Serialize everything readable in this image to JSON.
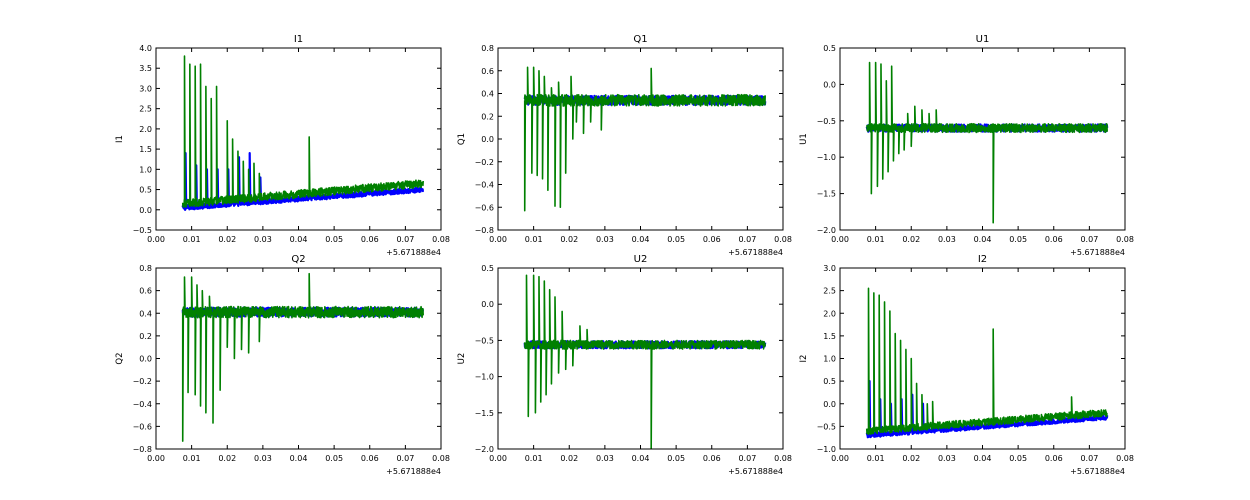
{
  "colors": {
    "series_a": "#0000ff",
    "series_b": "#008000",
    "axes": "#000000",
    "background": "#ffffff"
  },
  "chart_data": [
    {
      "type": "line",
      "title": "I1",
      "ylabel": "I1",
      "xlim": [
        0.0,
        0.08
      ],
      "ylim": [
        -0.5,
        4.0
      ],
      "xticks": [
        0.0,
        0.01,
        0.02,
        0.03,
        0.04,
        0.05,
        0.06,
        0.07,
        0.08
      ],
      "xtick_labels": [
        "0.00",
        "0.01",
        "0.02",
        "0.03",
        "0.04",
        "0.05",
        "0.06",
        "0.07",
        "0.08"
      ],
      "yticks": [
        -0.5,
        0.0,
        0.5,
        1.0,
        1.5,
        2.0,
        2.5,
        3.0,
        3.5,
        4.0
      ],
      "ytick_labels": [
        "−0.5",
        "0.0",
        "0.5",
        "1.0",
        "1.5",
        "2.0",
        "2.5",
        "3.0",
        "3.5",
        "4.0"
      ],
      "x_offset_label": "+5.671888e4",
      "series": [
        {
          "color": "#0000ff",
          "x_range": [
            0.0075,
            0.075
          ],
          "level_start": 0.05,
          "level_end": 0.5,
          "noise": 0.06,
          "spikes": [
            [
              0.0083,
              1.4
            ],
            [
              0.0113,
              1.1
            ],
            [
              0.0143,
              1.0
            ],
            [
              0.0173,
              1.0
            ],
            [
              0.0203,
              1.0
            ],
            [
              0.0233,
              1.3
            ],
            [
              0.0263,
              1.4
            ],
            [
              0.0293,
              0.8
            ]
          ]
        },
        {
          "color": "#008000",
          "x_range": [
            0.0075,
            0.075
          ],
          "level_start": 0.15,
          "level_end": 0.65,
          "noise": 0.1,
          "spikes": [
            [
              0.008,
              3.8
            ],
            [
              0.0095,
              3.6
            ],
            [
              0.011,
              3.55
            ],
            [
              0.0125,
              3.6
            ],
            [
              0.014,
              3.05
            ],
            [
              0.0155,
              2.75
            ],
            [
              0.017,
              3.05
            ],
            [
              0.02,
              2.2
            ],
            [
              0.0215,
              1.75
            ],
            [
              0.023,
              1.45
            ],
            [
              0.0245,
              1.2
            ],
            [
              0.026,
              1.0
            ],
            [
              0.0275,
              1.15
            ],
            [
              0.029,
              0.9
            ],
            [
              0.043,
              1.8
            ]
          ]
        }
      ]
    },
    {
      "type": "line",
      "title": "Q1",
      "ylabel": "Q1",
      "xlim": [
        0.0,
        0.08
      ],
      "ylim": [
        -0.8,
        0.8
      ],
      "xticks": [
        0.0,
        0.01,
        0.02,
        0.03,
        0.04,
        0.05,
        0.06,
        0.07,
        0.08
      ],
      "xtick_labels": [
        "0.00",
        "0.01",
        "0.02",
        "0.03",
        "0.04",
        "0.05",
        "0.06",
        "0.07",
        "0.08"
      ],
      "yticks": [
        -0.8,
        -0.6,
        -0.4,
        -0.2,
        0.0,
        0.2,
        0.4,
        0.6,
        0.8
      ],
      "ytick_labels": [
        "−0.8",
        "−0.6",
        "−0.4",
        "−0.2",
        "0.0",
        "0.2",
        "0.4",
        "0.6",
        "0.8"
      ],
      "x_offset_label": "+5.671888e4",
      "series": [
        {
          "color": "#0000ff",
          "x_range": [
            0.0075,
            0.075
          ],
          "level_start": 0.34,
          "level_end": 0.34,
          "noise": 0.04,
          "spikes": []
        },
        {
          "color": "#008000",
          "x_range": [
            0.0075,
            0.075
          ],
          "level_start": 0.34,
          "level_end": 0.34,
          "noise": 0.05,
          "spikes": [
            [
              0.0075,
              -0.63
            ],
            [
              0.0083,
              0.63
            ],
            [
              0.0095,
              -0.3
            ],
            [
              0.01,
              0.63
            ],
            [
              0.011,
              -0.32
            ],
            [
              0.0115,
              0.6
            ],
            [
              0.0125,
              -0.35
            ],
            [
              0.013,
              0.55
            ],
            [
              0.014,
              -0.45
            ],
            [
              0.015,
              0.45
            ],
            [
              0.016,
              -0.59
            ],
            [
              0.017,
              0.5
            ],
            [
              0.0175,
              -0.6
            ],
            [
              0.019,
              -0.3
            ],
            [
              0.0205,
              0.55
            ],
            [
              0.021,
              0.0
            ],
            [
              0.022,
              0.15
            ],
            [
              0.024,
              0.05
            ],
            [
              0.026,
              0.15
            ],
            [
              0.029,
              0.08
            ],
            [
              0.043,
              0.62
            ]
          ]
        }
      ]
    },
    {
      "type": "line",
      "title": "U1",
      "ylabel": "U1",
      "xlim": [
        0.0,
        0.08
      ],
      "ylim": [
        -2.0,
        0.5
      ],
      "xticks": [
        0.0,
        0.01,
        0.02,
        0.03,
        0.04,
        0.05,
        0.06,
        0.07,
        0.08
      ],
      "xtick_labels": [
        "0.00",
        "0.01",
        "0.02",
        "0.03",
        "0.04",
        "0.05",
        "0.06",
        "0.07",
        "0.08"
      ],
      "yticks": [
        -2.0,
        -1.5,
        -1.0,
        -0.5,
        0.0,
        0.5
      ],
      "ytick_labels": [
        "−2.0",
        "−1.5",
        "−1.0",
        "−0.5",
        "0.0",
        "0.5"
      ],
      "x_offset_label": "+5.671888e4",
      "series": [
        {
          "color": "#0000ff",
          "x_range": [
            0.0075,
            0.075
          ],
          "level_start": -0.6,
          "level_end": -0.6,
          "noise": 0.05,
          "spikes": []
        },
        {
          "color": "#008000",
          "x_range": [
            0.0075,
            0.075
          ],
          "level_start": -0.6,
          "level_end": -0.6,
          "noise": 0.06,
          "spikes": [
            [
              0.0083,
              0.3
            ],
            [
              0.0088,
              -1.5
            ],
            [
              0.01,
              0.3
            ],
            [
              0.0105,
              -1.4
            ],
            [
              0.0115,
              0.28
            ],
            [
              0.012,
              -1.3
            ],
            [
              0.013,
              0.05
            ],
            [
              0.0135,
              -1.2
            ],
            [
              0.0145,
              0.25
            ],
            [
              0.015,
              -1.05
            ],
            [
              0.0165,
              -0.95
            ],
            [
              0.018,
              -0.9
            ],
            [
              0.019,
              -0.4
            ],
            [
              0.02,
              -0.85
            ],
            [
              0.021,
              -0.3
            ],
            [
              0.023,
              -0.35
            ],
            [
              0.025,
              -0.4
            ],
            [
              0.027,
              -0.35
            ],
            [
              0.043,
              -1.9
            ]
          ]
        }
      ]
    },
    {
      "type": "line",
      "title": "Q2",
      "ylabel": "Q2",
      "xlim": [
        0.0,
        0.08
      ],
      "ylim": [
        -0.8,
        0.8
      ],
      "xticks": [
        0.0,
        0.01,
        0.02,
        0.03,
        0.04,
        0.05,
        0.06,
        0.07,
        0.08
      ],
      "xtick_labels": [
        "0.00",
        "0.01",
        "0.02",
        "0.03",
        "0.04",
        "0.05",
        "0.06",
        "0.07",
        "0.08"
      ],
      "yticks": [
        -0.8,
        -0.6,
        -0.4,
        -0.2,
        0.0,
        0.2,
        0.4,
        0.6,
        0.8
      ],
      "ytick_labels": [
        "−0.8",
        "−0.6",
        "−0.4",
        "−0.2",
        "0.0",
        "0.2",
        "0.4",
        "0.6",
        "0.8"
      ],
      "x_offset_label": "+5.671888e4",
      "series": [
        {
          "color": "#0000ff",
          "x_range": [
            0.0075,
            0.075
          ],
          "level_start": 0.41,
          "level_end": 0.41,
          "noise": 0.04,
          "spikes": []
        },
        {
          "color": "#008000",
          "x_range": [
            0.0075,
            0.075
          ],
          "level_start": 0.41,
          "level_end": 0.41,
          "noise": 0.05,
          "spikes": [
            [
              0.0075,
              -0.73
            ],
            [
              0.008,
              0.72
            ],
            [
              0.009,
              -0.3
            ],
            [
              0.01,
              0.72
            ],
            [
              0.011,
              -0.32
            ],
            [
              0.0115,
              0.65
            ],
            [
              0.0125,
              -0.42
            ],
            [
              0.013,
              0.6
            ],
            [
              0.014,
              -0.48
            ],
            [
              0.015,
              0.55
            ],
            [
              0.016,
              -0.57
            ],
            [
              0.017,
              0.45
            ],
            [
              0.018,
              -0.28
            ],
            [
              0.02,
              0.1
            ],
            [
              0.022,
              0.0
            ],
            [
              0.024,
              0.08
            ],
            [
              0.026,
              0.05
            ],
            [
              0.029,
              0.15
            ],
            [
              0.043,
              0.75
            ]
          ]
        }
      ]
    },
    {
      "type": "line",
      "title": "U2",
      "ylabel": "U2",
      "xlim": [
        0.0,
        0.08
      ],
      "ylim": [
        -2.0,
        0.5
      ],
      "xticks": [
        0.0,
        0.01,
        0.02,
        0.03,
        0.04,
        0.05,
        0.06,
        0.07,
        0.08
      ],
      "xtick_labels": [
        "0.00",
        "0.01",
        "0.02",
        "0.03",
        "0.04",
        "0.05",
        "0.06",
        "0.07",
        "0.08"
      ],
      "yticks": [
        -2.0,
        -1.5,
        -1.0,
        -0.5,
        0.0,
        0.5
      ],
      "ytick_labels": [
        "−2.0",
        "−1.5",
        "−1.0",
        "−0.5",
        "0.0",
        "0.5"
      ],
      "x_offset_label": "+5.671888e4",
      "series": [
        {
          "color": "#0000ff",
          "x_range": [
            0.0075,
            0.075
          ],
          "level_start": -0.56,
          "level_end": -0.56,
          "noise": 0.05,
          "spikes": []
        },
        {
          "color": "#008000",
          "x_range": [
            0.0075,
            0.075
          ],
          "level_start": -0.56,
          "level_end": -0.56,
          "noise": 0.06,
          "spikes": [
            [
              0.008,
              0.4
            ],
            [
              0.0085,
              -1.55
            ],
            [
              0.01,
              0.4
            ],
            [
              0.0105,
              -1.5
            ],
            [
              0.0115,
              0.38
            ],
            [
              0.012,
              -1.35
            ],
            [
              0.013,
              0.32
            ],
            [
              0.0135,
              -1.25
            ],
            [
              0.0145,
              0.2
            ],
            [
              0.015,
              -1.1
            ],
            [
              0.016,
              0.1
            ],
            [
              0.017,
              -0.95
            ],
            [
              0.018,
              -0.1
            ],
            [
              0.019,
              -0.9
            ],
            [
              0.021,
              -0.85
            ],
            [
              0.023,
              -0.3
            ],
            [
              0.025,
              -0.35
            ],
            [
              0.043,
              -2.0
            ]
          ]
        }
      ]
    },
    {
      "type": "line",
      "title": "I2",
      "ylabel": "I2",
      "xlim": [
        0.0,
        0.08
      ],
      "ylim": [
        -1.0,
        3.0
      ],
      "xticks": [
        0.0,
        0.01,
        0.02,
        0.03,
        0.04,
        0.05,
        0.06,
        0.07,
        0.08
      ],
      "xtick_labels": [
        "0.00",
        "0.01",
        "0.02",
        "0.03",
        "0.04",
        "0.05",
        "0.06",
        "0.07",
        "0.08"
      ],
      "yticks": [
        -1.0,
        -0.5,
        0.0,
        0.5,
        1.0,
        1.5,
        2.0,
        2.5,
        3.0
      ],
      "ytick_labels": [
        "−1.0",
        "−0.5",
        "0.0",
        "0.5",
        "1.0",
        "1.5",
        "2.0",
        "2.5",
        "3.0"
      ],
      "x_offset_label": "+5.671888e4",
      "series": [
        {
          "color": "#0000ff",
          "x_range": [
            0.0075,
            0.075
          ],
          "level_start": -0.7,
          "level_end": -0.3,
          "noise": 0.05,
          "spikes": [
            [
              0.0083,
              0.5
            ],
            [
              0.0113,
              0.1
            ],
            [
              0.0143,
              0.0
            ],
            [
              0.0173,
              0.1
            ],
            [
              0.0203,
              0.2
            ],
            [
              0.0233,
              0.0
            ]
          ]
        },
        {
          "color": "#008000",
          "x_range": [
            0.0075,
            0.075
          ],
          "level_start": -0.6,
          "level_end": -0.2,
          "noise": 0.08,
          "spikes": [
            [
              0.008,
              2.55
            ],
            [
              0.0095,
              2.45
            ],
            [
              0.011,
              2.4
            ],
            [
              0.0125,
              2.25
            ],
            [
              0.014,
              2.05
            ],
            [
              0.0155,
              1.55
            ],
            [
              0.017,
              1.4
            ],
            [
              0.0185,
              1.2
            ],
            [
              0.02,
              1.0
            ],
            [
              0.0215,
              0.45
            ],
            [
              0.023,
              0.2
            ],
            [
              0.0245,
              0.0
            ],
            [
              0.026,
              0.05
            ],
            [
              0.043,
              1.65
            ],
            [
              0.065,
              0.15
            ]
          ]
        }
      ]
    }
  ]
}
